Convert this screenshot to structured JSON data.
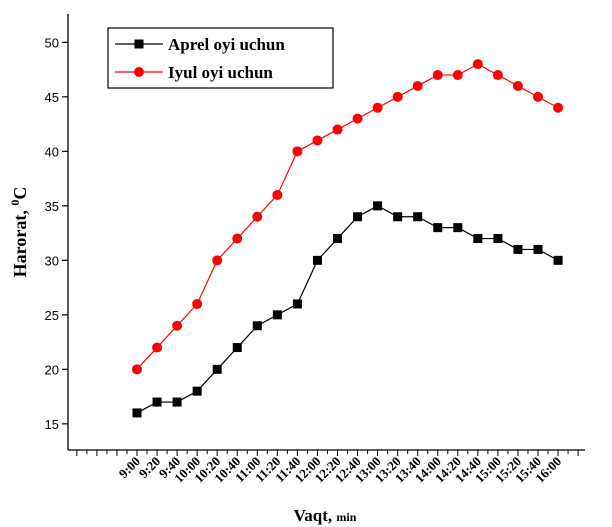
{
  "chart_data": {
    "type": "line",
    "y_label": {
      "text": "Harorat, ",
      "sup": "0",
      "unit": "C"
    },
    "x_label": {
      "text": "Vaqt, ",
      "unit": "min"
    },
    "categories": [
      "9:00",
      "9:20",
      "9:40",
      "10:00",
      "10:20",
      "10:40",
      "11:00",
      "11:20",
      "11:40",
      "12:00",
      "12:20",
      "12:40",
      "13:00",
      "13:20",
      "13:40",
      "14:00",
      "14:20",
      "14:40",
      "15:00",
      "15:20",
      "15:40",
      "16:00"
    ],
    "series": [
      {
        "name": "Aprel oyi uchun",
        "color": "#000000",
        "marker": "square",
        "values": [
          16,
          17,
          17,
          18,
          20,
          22,
          24,
          25,
          26,
          30,
          32,
          34,
          35,
          34,
          34,
          33,
          33,
          32,
          32,
          31,
          31,
          30
        ]
      },
      {
        "name": "Iyul oyi uchun",
        "color": "#ff0000",
        "marker": "circle",
        "values": [
          20,
          22,
          24,
          26,
          30,
          32,
          34,
          36,
          40,
          41,
          42,
          43,
          44,
          45,
          46,
          47,
          47,
          48,
          47,
          46,
          45,
          44
        ]
      }
    ],
    "ylim": [
      12.6,
      52.6
    ],
    "yticks": [
      15,
      20,
      25,
      30,
      35,
      40,
      45,
      50
    ],
    "legend": "top-left"
  }
}
